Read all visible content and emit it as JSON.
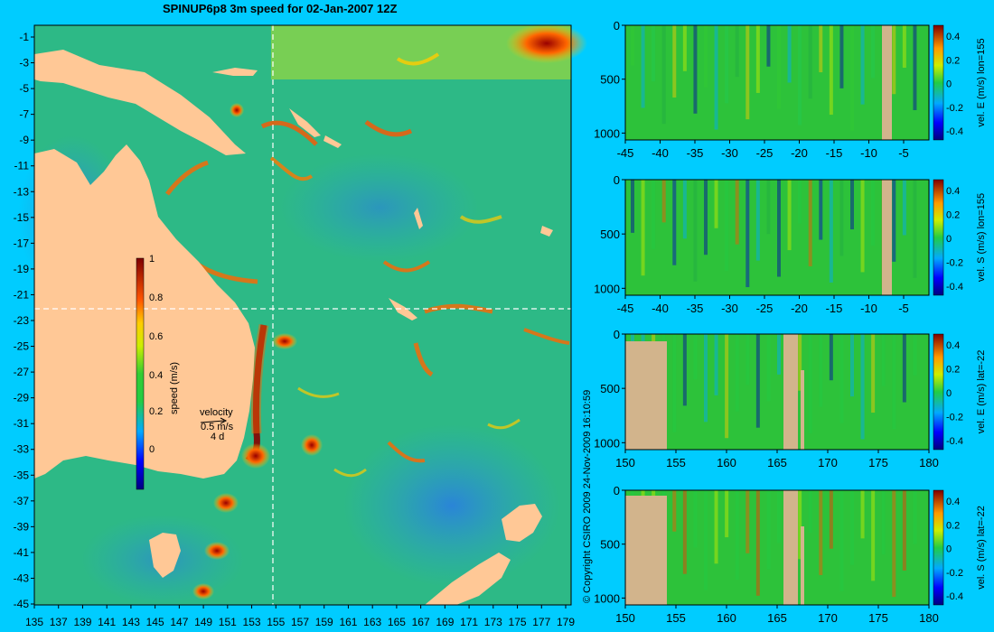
{
  "title": "SPINUP6p8 3m speed for 02-Jan-2007 12Z",
  "copyright": "© Copyright CSIRO 2009   24-Nov-2009 16:10:59",
  "colors": {
    "background": "#00ccff",
    "land": "#ffc896",
    "section_land": "#d2b48c",
    "guide_line": "#ffffff"
  },
  "map": {
    "lat_ticks": [
      "-1",
      "-3",
      "-5",
      "-7",
      "-9",
      "-11",
      "-13",
      "-15",
      "-17",
      "-19",
      "-21",
      "-23",
      "-25",
      "-27",
      "-29",
      "-31",
      "-33",
      "-35",
      "-37",
      "-39",
      "-41",
      "-43",
      "-45"
    ],
    "lon_ticks": [
      "135",
      "137",
      "139",
      "141",
      "143",
      "145",
      "147",
      "149",
      "151",
      "153",
      "155",
      "157",
      "159",
      "161",
      "163",
      "165",
      "167",
      "169",
      "171",
      "173",
      "175",
      "177",
      "179"
    ],
    "colorbar": {
      "label": "speed (m/s)",
      "ticks": [
        "1",
        "0.8",
        "0.6",
        "0.4",
        "0.2",
        "0"
      ]
    },
    "velocity_key": {
      "title": "velocity",
      "scale": "0.5 m/s",
      "duration": "4 d"
    }
  },
  "sections": [
    {
      "label": "vel. E (m/s) lon=155",
      "depth_ticks": [
        "0",
        "500",
        "1000"
      ],
      "x_ticks": [
        "-45",
        "-40",
        "-35",
        "-30",
        "-25",
        "-20",
        "-15",
        "-10",
        "-5"
      ],
      "colorbar_ticks": [
        "0.4",
        "0.2",
        "0",
        "-0.2",
        "-0.4"
      ]
    },
    {
      "label": "vel. S (m/s) lon=155",
      "depth_ticks": [
        "0",
        "500",
        "1000"
      ],
      "x_ticks": [
        "-45",
        "-40",
        "-35",
        "-30",
        "-25",
        "-20",
        "-15",
        "-10",
        "-5"
      ],
      "colorbar_ticks": [
        "0.4",
        "0.2",
        "0",
        "-0.2",
        "-0.4"
      ]
    },
    {
      "label": "vel. E (m/s) lat=-22",
      "depth_ticks": [
        "0",
        "500",
        "1000"
      ],
      "x_ticks": [
        "150",
        "155",
        "160",
        "165",
        "170",
        "175",
        "180"
      ],
      "colorbar_ticks": [
        "0.4",
        "0.2",
        "0",
        "-0.2",
        "-0.4"
      ]
    },
    {
      "label": "vel. S (m/s) lat=-22",
      "depth_ticks": [
        "0",
        "500",
        "1000"
      ],
      "x_ticks": [
        "150",
        "155",
        "160",
        "165",
        "170",
        "175",
        "180"
      ],
      "colorbar_ticks": [
        "0.4",
        "0.2",
        "0",
        "-0.2",
        "-0.4"
      ]
    }
  ]
}
